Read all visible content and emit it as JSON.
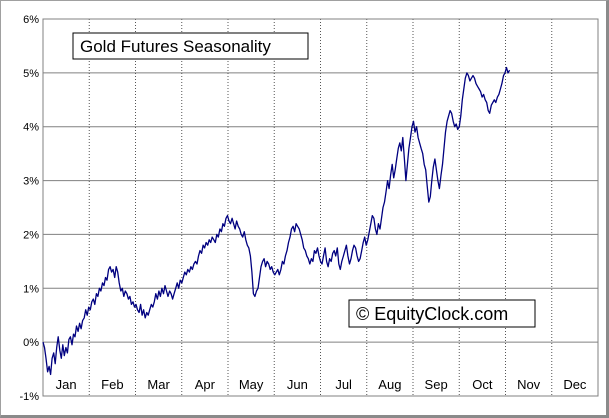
{
  "chart_data": {
    "type": "line",
    "title": "Gold Futures Seasonality",
    "watermark": "© EquityClock.com",
    "xlabel": "",
    "ylabel": "",
    "categories": [
      "Jan",
      "Feb",
      "Mar",
      "Apr",
      "May",
      "Jun",
      "Jul",
      "Aug",
      "Sep",
      "Oct",
      "Nov",
      "Dec"
    ],
    "y_ticks": [
      "-1%",
      "0%",
      "1%",
      "2%",
      "3%",
      "4%",
      "5%",
      "6%"
    ],
    "ylim": [
      -1,
      6
    ],
    "xlim_days": [
      1,
      365
    ],
    "grid": {
      "horizontal": "solid",
      "vertical": "dotted"
    },
    "line_color": "#000080",
    "series": [
      {
        "name": "",
        "points": [
          [
            1,
            0.0
          ],
          [
            2,
            -0.1
          ],
          [
            3,
            -0.3
          ],
          [
            4,
            -0.55
          ],
          [
            5,
            -0.45
          ],
          [
            6,
            -0.6
          ],
          [
            7,
            -0.3
          ],
          [
            8,
            -0.2
          ],
          [
            9,
            -0.4
          ],
          [
            10,
            -0.1
          ],
          [
            11,
            0.1
          ],
          [
            12,
            -0.15
          ],
          [
            13,
            -0.3
          ],
          [
            14,
            -0.05
          ],
          [
            15,
            -0.25
          ],
          [
            16,
            -0.1
          ],
          [
            17,
            -0.2
          ],
          [
            18,
            0.05
          ],
          [
            19,
            0.1
          ],
          [
            20,
            -0.05
          ],
          [
            21,
            0.15
          ],
          [
            22,
            0.1
          ],
          [
            23,
            0.3
          ],
          [
            24,
            0.2
          ],
          [
            25,
            0.35
          ],
          [
            26,
            0.25
          ],
          [
            27,
            0.4
          ],
          [
            28,
            0.45
          ],
          [
            29,
            0.6
          ],
          [
            30,
            0.5
          ],
          [
            31,
            0.65
          ],
          [
            32,
            0.6
          ],
          [
            33,
            0.75
          ],
          [
            34,
            0.8
          ],
          [
            35,
            0.7
          ],
          [
            36,
            0.9
          ],
          [
            37,
            0.85
          ],
          [
            38,
            1.0
          ],
          [
            39,
            0.95
          ],
          [
            40,
            1.1
          ],
          [
            41,
            1.05
          ],
          [
            42,
            1.2
          ],
          [
            43,
            1.15
          ],
          [
            44,
            1.35
          ],
          [
            45,
            1.4
          ],
          [
            46,
            1.3
          ],
          [
            47,
            1.35
          ],
          [
            48,
            1.2
          ],
          [
            49,
            1.4
          ],
          [
            50,
            1.3
          ],
          [
            51,
            1.1
          ],
          [
            52,
            0.95
          ],
          [
            53,
            1.0
          ],
          [
            54,
            0.85
          ],
          [
            55,
            0.95
          ],
          [
            56,
            0.9
          ],
          [
            57,
            0.8
          ],
          [
            58,
            0.85
          ],
          [
            59,
            0.7
          ],
          [
            60,
            0.75
          ],
          [
            61,
            0.65
          ],
          [
            62,
            0.7
          ],
          [
            63,
            0.6
          ],
          [
            64,
            0.55
          ],
          [
            65,
            0.7
          ],
          [
            66,
            0.5
          ],
          [
            67,
            0.6
          ],
          [
            68,
            0.45
          ],
          [
            69,
            0.55
          ],
          [
            70,
            0.5
          ],
          [
            71,
            0.6
          ],
          [
            72,
            0.7
          ],
          [
            73,
            0.65
          ],
          [
            74,
            0.75
          ],
          [
            75,
            0.9
          ],
          [
            76,
            0.8
          ],
          [
            77,
            0.95
          ],
          [
            78,
            0.85
          ],
          [
            79,
            1.0
          ],
          [
            80,
            0.9
          ],
          [
            81,
            1.05
          ],
          [
            82,
            0.95
          ],
          [
            83,
            0.85
          ],
          [
            84,
            0.95
          ],
          [
            85,
            0.9
          ],
          [
            86,
            0.8
          ],
          [
            87,
            0.9
          ],
          [
            88,
            1.0
          ],
          [
            89,
            1.1
          ],
          [
            90,
            1.0
          ],
          [
            91,
            1.15
          ],
          [
            92,
            1.1
          ],
          [
            93,
            1.2
          ],
          [
            94,
            1.3
          ],
          [
            95,
            1.25
          ],
          [
            96,
            1.35
          ],
          [
            97,
            1.3
          ],
          [
            98,
            1.4
          ],
          [
            99,
            1.35
          ],
          [
            100,
            1.45
          ],
          [
            101,
            1.5
          ],
          [
            102,
            1.45
          ],
          [
            103,
            1.6
          ],
          [
            104,
            1.7
          ],
          [
            105,
            1.65
          ],
          [
            106,
            1.8
          ],
          [
            107,
            1.75
          ],
          [
            108,
            1.85
          ],
          [
            109,
            1.8
          ],
          [
            110,
            1.9
          ],
          [
            111,
            1.85
          ],
          [
            112,
            1.95
          ],
          [
            113,
            1.9
          ],
          [
            114,
            1.85
          ],
          [
            115,
            2.0
          ],
          [
            116,
            1.95
          ],
          [
            117,
            2.1
          ],
          [
            118,
            2.05
          ],
          [
            119,
            2.2
          ],
          [
            120,
            2.15
          ],
          [
            121,
            2.3
          ],
          [
            122,
            2.35
          ],
          [
            123,
            2.25
          ],
          [
            124,
            2.2
          ],
          [
            125,
            2.3
          ],
          [
            126,
            2.2
          ],
          [
            127,
            2.1
          ],
          [
            128,
            2.25
          ],
          [
            129,
            2.15
          ],
          [
            130,
            2.1
          ],
          [
            131,
            2.0
          ],
          [
            132,
            1.95
          ],
          [
            133,
            2.05
          ],
          [
            134,
            1.9
          ],
          [
            135,
            1.8
          ],
          [
            136,
            1.75
          ],
          [
            137,
            1.6
          ],
          [
            138,
            1.3
          ],
          [
            139,
            0.9
          ],
          [
            140,
            0.85
          ],
          [
            141,
            0.95
          ],
          [
            142,
            1.0
          ],
          [
            143,
            1.2
          ],
          [
            144,
            1.4
          ],
          [
            145,
            1.5
          ],
          [
            146,
            1.55
          ],
          [
            147,
            1.4
          ],
          [
            148,
            1.5
          ],
          [
            149,
            1.45
          ],
          [
            150,
            1.35
          ],
          [
            151,
            1.4
          ],
          [
            152,
            1.3
          ],
          [
            153,
            1.25
          ],
          [
            154,
            1.3
          ],
          [
            155,
            1.35
          ],
          [
            156,
            1.25
          ],
          [
            157,
            1.35
          ],
          [
            158,
            1.5
          ],
          [
            159,
            1.45
          ],
          [
            160,
            1.6
          ],
          [
            161,
            1.7
          ],
          [
            162,
            1.85
          ],
          [
            163,
            1.95
          ],
          [
            164,
            2.1
          ],
          [
            165,
            2.15
          ],
          [
            166,
            2.05
          ],
          [
            167,
            2.2
          ],
          [
            168,
            2.15
          ],
          [
            169,
            2.1
          ],
          [
            170,
            2.0
          ],
          [
            171,
            1.9
          ],
          [
            172,
            1.75
          ],
          [
            173,
            1.7
          ],
          [
            174,
            1.6
          ],
          [
            175,
            1.55
          ],
          [
            176,
            1.45
          ],
          [
            177,
            1.55
          ],
          [
            178,
            1.5
          ],
          [
            179,
            1.7
          ],
          [
            180,
            1.65
          ],
          [
            181,
            1.75
          ],
          [
            182,
            1.6
          ],
          [
            183,
            1.5
          ],
          [
            184,
            1.45
          ],
          [
            185,
            1.6
          ],
          [
            186,
            1.75
          ],
          [
            187,
            1.5
          ],
          [
            188,
            1.4
          ],
          [
            189,
            1.55
          ],
          [
            190,
            1.5
          ],
          [
            191,
            1.65
          ],
          [
            192,
            1.7
          ],
          [
            193,
            1.6
          ],
          [
            194,
            1.75
          ],
          [
            195,
            1.45
          ],
          [
            196,
            1.35
          ],
          [
            197,
            1.5
          ],
          [
            198,
            1.6
          ],
          [
            199,
            1.7
          ],
          [
            200,
            1.8
          ],
          [
            201,
            1.6
          ],
          [
            202,
            1.45
          ],
          [
            203,
            1.55
          ],
          [
            204,
            1.7
          ],
          [
            205,
            1.8
          ],
          [
            206,
            1.75
          ],
          [
            207,
            1.6
          ],
          [
            208,
            1.5
          ],
          [
            209,
            1.55
          ],
          [
            210,
            1.7
          ],
          [
            211,
            1.85
          ],
          [
            212,
            1.95
          ],
          [
            213,
            1.8
          ],
          [
            214,
            1.9
          ],
          [
            215,
            2.05
          ],
          [
            216,
            2.2
          ],
          [
            217,
            2.35
          ],
          [
            218,
            2.3
          ],
          [
            219,
            2.1
          ],
          [
            220,
            2.0
          ],
          [
            221,
            2.2
          ],
          [
            222,
            2.1
          ],
          [
            223,
            2.3
          ],
          [
            224,
            2.5
          ],
          [
            225,
            2.6
          ],
          [
            226,
            2.8
          ],
          [
            227,
            3.0
          ],
          [
            228,
            2.85
          ],
          [
            229,
            3.1
          ],
          [
            230,
            3.3
          ],
          [
            231,
            3.05
          ],
          [
            232,
            3.2
          ],
          [
            233,
            3.4
          ],
          [
            234,
            3.6
          ],
          [
            235,
            3.7
          ],
          [
            236,
            3.55
          ],
          [
            237,
            3.8
          ],
          [
            238,
            3.4
          ],
          [
            239,
            3.0
          ],
          [
            240,
            3.3
          ],
          [
            241,
            3.6
          ],
          [
            242,
            3.8
          ],
          [
            243,
            4.0
          ],
          [
            244,
            4.1
          ],
          [
            245,
            3.9
          ],
          [
            246,
            4.0
          ],
          [
            247,
            3.8
          ],
          [
            248,
            3.7
          ],
          [
            249,
            3.6
          ],
          [
            250,
            3.5
          ],
          [
            251,
            3.3
          ],
          [
            252,
            3.2
          ],
          [
            253,
            2.9
          ],
          [
            254,
            2.6
          ],
          [
            255,
            2.7
          ],
          [
            256,
            3.0
          ],
          [
            257,
            3.25
          ],
          [
            258,
            3.4
          ],
          [
            259,
            3.2
          ],
          [
            260,
            3.0
          ],
          [
            261,
            2.85
          ],
          [
            262,
            3.1
          ],
          [
            263,
            3.3
          ],
          [
            264,
            3.6
          ],
          [
            265,
            3.9
          ],
          [
            266,
            4.1
          ],
          [
            267,
            4.2
          ],
          [
            268,
            4.3
          ],
          [
            269,
            4.25
          ],
          [
            270,
            4.1
          ],
          [
            271,
            4.0
          ],
          [
            272,
            4.05
          ],
          [
            273,
            3.95
          ],
          [
            274,
            4.0
          ],
          [
            275,
            4.2
          ],
          [
            276,
            4.5
          ],
          [
            277,
            4.7
          ],
          [
            278,
            4.9
          ],
          [
            279,
            5.0
          ],
          [
            280,
            4.95
          ],
          [
            281,
            4.85
          ],
          [
            282,
            4.9
          ],
          [
            283,
            4.95
          ],
          [
            284,
            4.9
          ],
          [
            285,
            4.8
          ],
          [
            286,
            4.75
          ],
          [
            287,
            4.7
          ],
          [
            288,
            4.65
          ],
          [
            289,
            4.55
          ],
          [
            290,
            4.6
          ],
          [
            291,
            4.5
          ],
          [
            292,
            4.45
          ],
          [
            293,
            4.3
          ],
          [
            294,
            4.25
          ],
          [
            295,
            4.4
          ],
          [
            296,
            4.45
          ],
          [
            297,
            4.5
          ],
          [
            298,
            4.45
          ],
          [
            299,
            4.55
          ],
          [
            300,
            4.6
          ],
          [
            301,
            4.7
          ],
          [
            302,
            4.8
          ],
          [
            303,
            4.95
          ],
          [
            304,
            5.0
          ],
          [
            305,
            5.1
          ],
          [
            306,
            5.0
          ],
          [
            307,
            5.05
          ]
        ]
      }
    ]
  }
}
